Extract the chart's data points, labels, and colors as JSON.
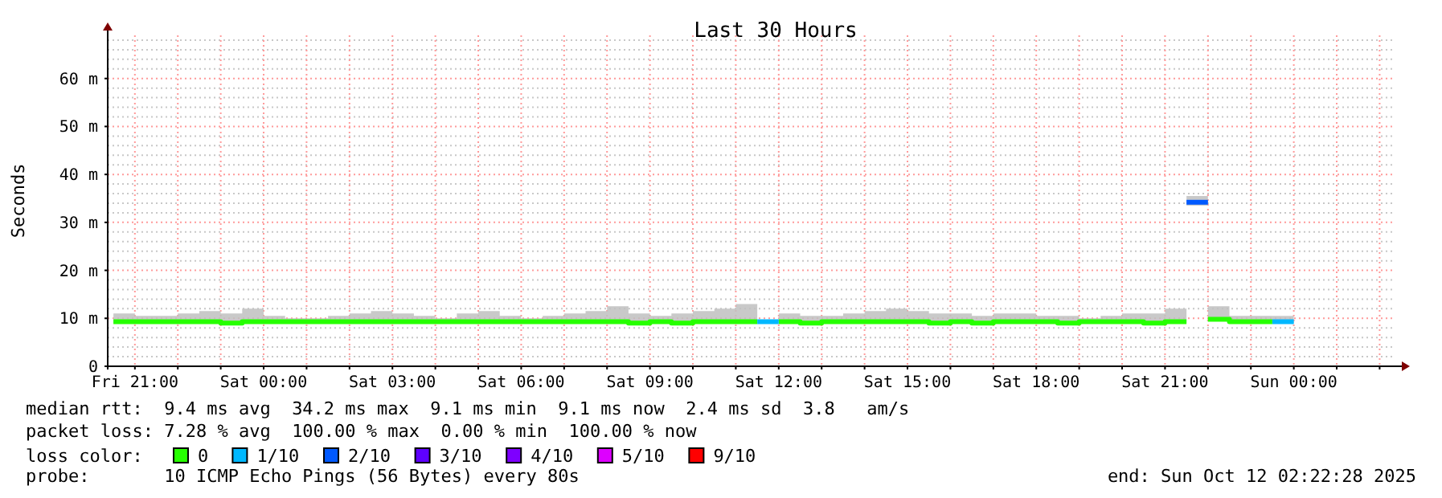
{
  "chart_data": {
    "type": "step",
    "title": "Last 30 Hours",
    "ylabel": "Seconds",
    "legend_title": "loss color:",
    "legend": "bottom",
    "grid": true,
    "xlim": [
      "2025-10-10T20:22",
      "2025-10-12T02:22"
    ],
    "xticks": [
      {
        "value": "2025-10-10T21:00",
        "label": "Fri 21:00"
      },
      {
        "value": "2025-10-10T22:00",
        "label": null
      },
      {
        "value": "2025-10-10T23:00",
        "label": null
      },
      {
        "value": "2025-10-11T00:00",
        "label": "Sat 00:00"
      },
      {
        "value": "2025-10-11T01:00",
        "label": null
      },
      {
        "value": "2025-10-11T02:00",
        "label": null
      },
      {
        "value": "2025-10-11T03:00",
        "label": "Sat 03:00"
      },
      {
        "value": "2025-10-11T04:00",
        "label": null
      },
      {
        "value": "2025-10-11T05:00",
        "label": null
      },
      {
        "value": "2025-10-11T06:00",
        "label": "Sat 06:00"
      },
      {
        "value": "2025-10-11T07:00",
        "label": null
      },
      {
        "value": "2025-10-11T08:00",
        "label": null
      },
      {
        "value": "2025-10-11T09:00",
        "label": "Sat 09:00"
      },
      {
        "value": "2025-10-11T10:00",
        "label": null
      },
      {
        "value": "2025-10-11T11:00",
        "label": null
      },
      {
        "value": "2025-10-11T12:00",
        "label": "Sat 12:00"
      },
      {
        "value": "2025-10-11T13:00",
        "label": null
      },
      {
        "value": "2025-10-11T14:00",
        "label": null
      },
      {
        "value": "2025-10-11T15:00",
        "label": "Sat 15:00"
      },
      {
        "value": "2025-10-11T16:00",
        "label": null
      },
      {
        "value": "2025-10-11T17:00",
        "label": null
      },
      {
        "value": "2025-10-11T18:00",
        "label": "Sat 18:00"
      },
      {
        "value": "2025-10-11T19:00",
        "label": null
      },
      {
        "value": "2025-10-11T20:00",
        "label": null
      },
      {
        "value": "2025-10-11T21:00",
        "label": "Sat 21:00"
      },
      {
        "value": "2025-10-11T22:00",
        "label": null
      },
      {
        "value": "2025-10-11T23:00",
        "label": null
      },
      {
        "value": "2025-10-12T00:00",
        "label": "Sun 00:00"
      },
      {
        "value": "2025-10-12T01:00",
        "label": null
      },
      {
        "value": "2025-10-12T02:00",
        "label": null
      }
    ],
    "ylim": [
      0,
      69
    ],
    "yticks": [
      0,
      {
        "value": 2,
        "label": null
      },
      {
        "value": 4,
        "label": null
      },
      {
        "value": 6,
        "label": null
      },
      {
        "value": 8,
        "label": null
      },
      {
        "value": 10,
        "label": "10 m"
      },
      {
        "value": 12,
        "label": null
      },
      {
        "value": 14,
        "label": null
      },
      {
        "value": 16,
        "label": null
      },
      {
        "value": 18,
        "label": null
      },
      {
        "value": 20,
        "label": "20 m"
      },
      {
        "value": 22,
        "label": null
      },
      {
        "value": 24,
        "label": null
      },
      {
        "value": 26,
        "label": null
      },
      {
        "value": 28,
        "label": null
      },
      {
        "value": 30,
        "label": "30 m"
      },
      {
        "value": 32,
        "label": null
      },
      {
        "value": 34,
        "label": null
      },
      {
        "value": 36,
        "label": null
      },
      {
        "value": 38,
        "label": null
      },
      {
        "value": 40,
        "label": "40 m"
      },
      {
        "value": 42,
        "label": null
      },
      {
        "value": 44,
        "label": null
      },
      {
        "value": 46,
        "label": null
      },
      {
        "value": 48,
        "label": null
      },
      {
        "value": 50,
        "label": "50 m"
      },
      {
        "value": 52,
        "label": null
      },
      {
        "value": 54,
        "label": null
      },
      {
        "value": 56,
        "label": null
      },
      {
        "value": 58,
        "label": null
      },
      {
        "value": 60,
        "label": "60 m"
      },
      {
        "value": 62,
        "label": null
      },
      {
        "value": 64,
        "label": null
      },
      {
        "value": 66,
        "label": null
      },
      {
        "value": 68,
        "label": null
      }
    ],
    "series": [
      {
        "name": "0",
        "color": "#26ff00",
        "x": [
          "2025-10-10T20:30",
          "2025-10-10T21:00",
          "2025-10-10T21:30",
          "2025-10-10T22:00",
          "2025-10-10T22:30",
          "2025-10-10T23:00",
          "2025-10-10T23:30",
          "2025-10-11T00:00",
          "2025-10-11T00:30",
          "2025-10-11T01:00",
          "2025-10-11T01:30",
          "2025-10-11T02:00",
          "2025-10-11T02:30",
          "2025-10-11T03:00",
          "2025-10-11T03:30",
          "2025-10-11T04:00",
          "2025-10-11T04:30",
          "2025-10-11T05:00",
          "2025-10-11T05:30",
          "2025-10-11T06:00",
          "2025-10-11T06:30",
          "2025-10-11T07:00",
          "2025-10-11T07:30",
          "2025-10-11T08:00",
          "2025-10-11T08:30",
          "2025-10-11T09:00",
          "2025-10-11T09:30",
          "2025-10-11T10:00",
          "2025-10-11T10:30",
          "2025-10-11T11:00",
          "2025-10-11T11:30",
          "2025-10-11T11:45",
          "2025-10-11T12:00",
          "2025-10-11T12:30",
          "2025-10-11T13:00",
          "2025-10-11T13:30",
          "2025-10-11T14:00",
          "2025-10-11T14:30",
          "2025-10-11T15:00",
          "2025-10-11T15:30",
          "2025-10-11T16:00",
          "2025-10-11T16:30",
          "2025-10-11T17:00",
          "2025-10-11T17:30",
          "2025-10-11T18:00",
          "2025-10-11T18:30",
          "2025-10-11T19:00",
          "2025-10-11T19:30",
          "2025-10-11T20:00",
          "2025-10-11T20:30",
          "2025-10-11T21:00",
          "2025-10-11T21:30",
          "2025-10-11T21:45",
          "2025-10-11T22:00",
          "2025-10-11T22:30",
          "2025-10-11T23:00",
          "2025-10-11T23:30"
        ],
        "values": [
          9.3,
          9.3,
          9.3,
          9.3,
          9.3,
          9.0,
          9.3,
          9.3,
          9.3,
          9.3,
          9.3,
          9.3,
          9.3,
          9.3,
          9.3,
          9.3,
          9.3,
          9.3,
          9.3,
          9.3,
          9.3,
          9.3,
          9.3,
          9.3,
          9.0,
          9.3,
          9.0,
          9.3,
          9.3,
          9.3,
          9.3,
          null,
          9.3,
          9.0,
          9.3,
          9.3,
          9.3,
          9.3,
          9.3,
          9.0,
          9.3,
          9.0,
          9.3,
          9.3,
          9.3,
          9.0,
          9.3,
          9.3,
          9.3,
          9.0,
          9.3,
          9.3,
          null,
          9.8,
          9.3,
          9.3,
          9.3
        ],
        "lower": [
          9.0,
          9.0,
          9.0,
          9.0,
          9.0,
          8.8,
          9.0,
          9.0,
          9.0,
          9.0,
          9.0,
          9.0,
          9.0,
          9.0,
          9.0,
          9.0,
          9.0,
          9.0,
          9.0,
          9.0,
          9.0,
          9.0,
          9.0,
          9.0,
          8.8,
          9.0,
          8.8,
          9.0,
          9.0,
          9.0,
          9.0,
          null,
          9.0,
          8.8,
          9.0,
          9.0,
          9.0,
          9.0,
          9.0,
          8.8,
          9.0,
          8.8,
          9.0,
          9.0,
          9.0,
          8.8,
          9.0,
          9.0,
          9.0,
          8.8,
          9.0,
          9.0,
          null,
          9.5,
          9.0,
          9.0,
          9.0
        ],
        "upper": [
          11,
          10.5,
          10.5,
          11,
          11.5,
          11,
          12,
          10.5,
          10,
          10,
          10.5,
          11,
          11.5,
          11,
          10.5,
          10,
          11,
          11.5,
          10.5,
          10,
          10.5,
          11,
          11.5,
          12.5,
          11,
          10.5,
          11,
          11.5,
          12,
          13,
          13,
          null,
          11,
          10.5,
          10.5,
          11,
          11.5,
          12,
          11.5,
          11,
          11,
          10.5,
          11,
          11,
          10.5,
          10.5,
          10,
          10.5,
          11,
          11,
          12,
          12,
          null,
          12.5,
          10.5,
          10.5,
          10.5
        ]
      },
      {
        "name": "1/10",
        "color": "#00b8ff",
        "x": [
          "2025-10-11T11:30",
          "2025-10-11T12:00",
          "2025-10-11T18:00",
          "2025-10-11T23:30",
          "2025-10-12T00:00"
        ],
        "values": [
          9.3,
          9.3,
          null,
          9.3,
          9.3
        ],
        "lower": [
          null,
          null,
          null,
          9.0,
          9.0
        ],
        "upper": [
          null,
          null,
          null,
          10.5,
          10.5
        ]
      },
      {
        "name": "2/10",
        "color": "#0059ff",
        "x": [
          "2025-10-11T21:30",
          "2025-10-11T22:00"
        ],
        "values": [
          34.2,
          34.2
        ],
        "lower": [
          33.5,
          33.5
        ],
        "upper": [
          35.5,
          35.5
        ]
      },
      {
        "name": "3/10",
        "color": "#5e00ff"
      },
      {
        "name": "4/10",
        "color": "#7e00ff"
      },
      {
        "name": "5/10",
        "color": "#dd00ff"
      },
      {
        "name": "9/10",
        "color": "#ff0000"
      }
    ],
    "annotations": [
      "median rtt:  9.4 ms avg  34.2 ms max  9.1 ms min  9.1 ms now  2.4 ms sd  3.8   am/s",
      "packet loss: 7.28 % avg  100.00 % max  0.00 % min  100.00 % now",
      "probe:       10 ICMP Echo Pings (56 Bytes) every 80s",
      "end: Sun Oct 12 02:22:28 2025"
    ]
  }
}
